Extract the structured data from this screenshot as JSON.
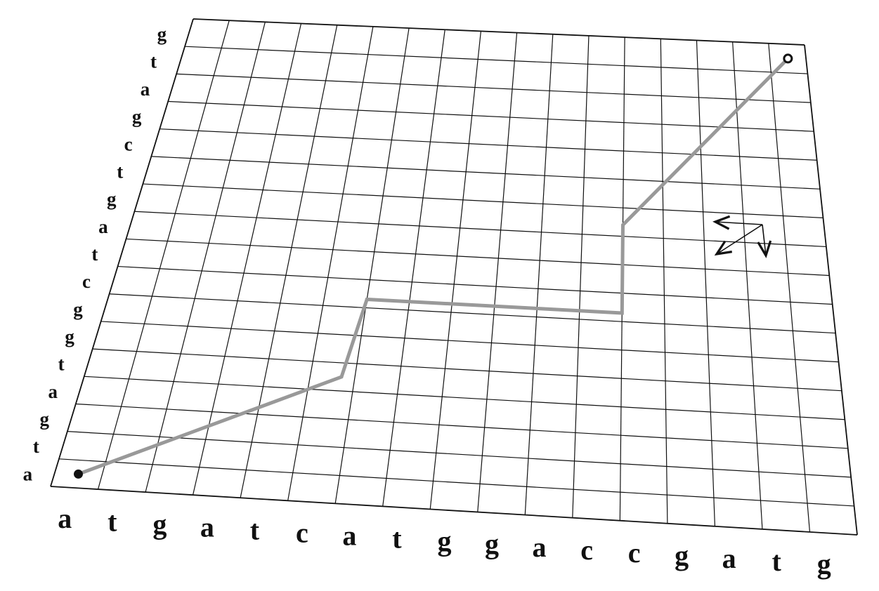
{
  "grid": {
    "columns": 17,
    "rows": 17
  },
  "bottom_sequence": [
    "a",
    "t",
    "g",
    "a",
    "t",
    "c",
    "a",
    "t",
    "g",
    "g",
    "a",
    "c",
    "c",
    "g",
    "a",
    "t",
    "g"
  ],
  "left_sequence": [
    "a",
    "t",
    "g",
    "a",
    "t",
    "g",
    "g",
    "c",
    "t",
    "a",
    "g",
    "t",
    "c",
    "g",
    "a",
    "t",
    "g"
  ],
  "path": {
    "color": "#999999",
    "points": [
      [
        0.5,
        0.5
      ],
      [
        5.7,
        4.5
      ],
      [
        6.0,
        7.3
      ],
      [
        12.0,
        7.3
      ],
      [
        12.0,
        10.4
      ],
      [
        16.5,
        16.5
      ]
    ],
    "start_marker": "dot",
    "end_marker": "open-dot"
  },
  "direction_arrows": {
    "icon": "three-direction-arrows",
    "directions": [
      "left",
      "down-left",
      "down"
    ]
  },
  "colors": {
    "grid_line": "#111111",
    "text": "#111111",
    "marker": "#111111"
  }
}
